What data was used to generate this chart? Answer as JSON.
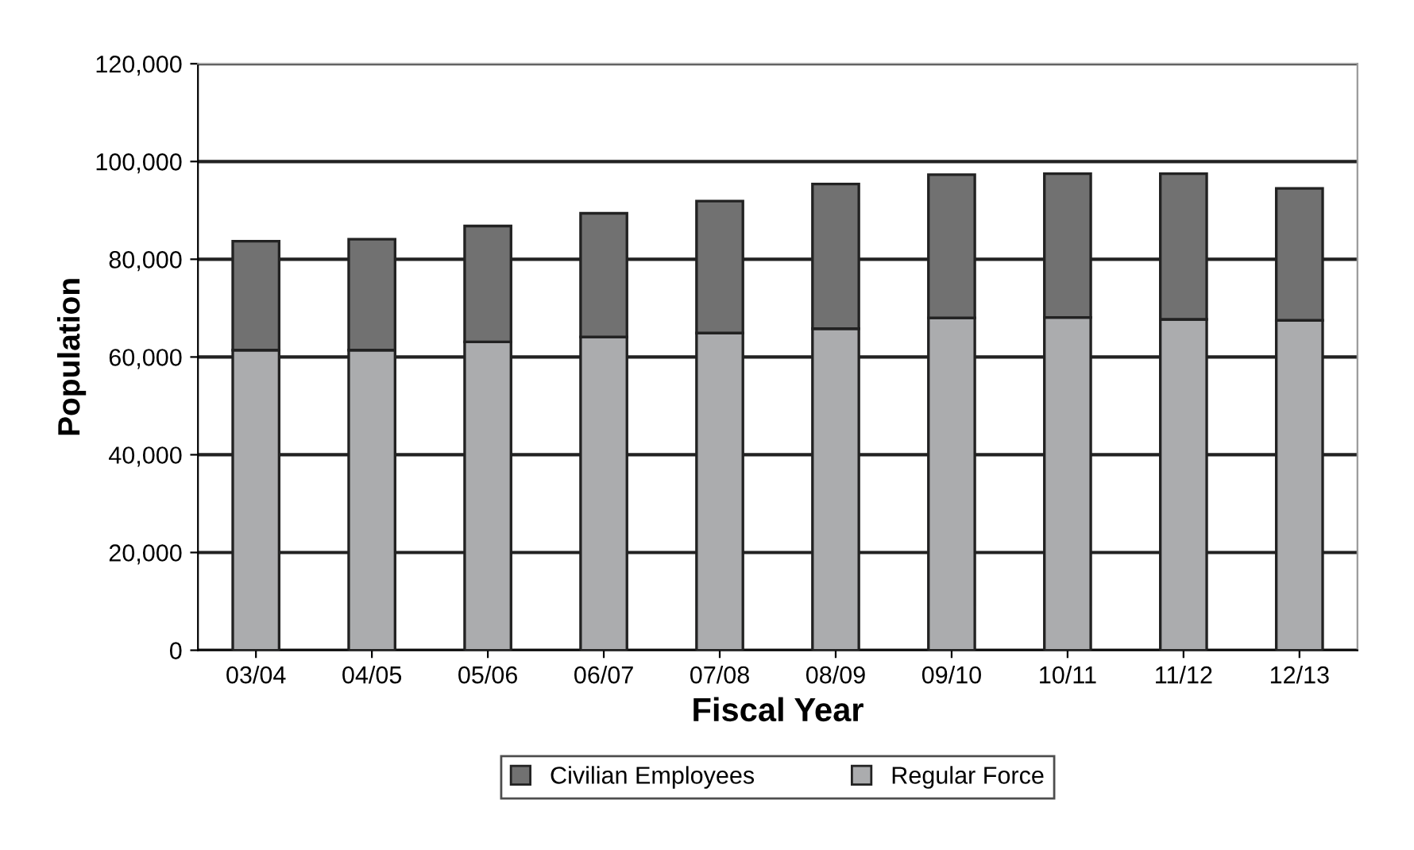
{
  "chart_data": {
    "type": "bar",
    "stacked": true,
    "xlabel": "Fiscal Year",
    "ylabel": "Population",
    "categories": [
      "03/04",
      "04/05",
      "05/06",
      "06/07",
      "07/08",
      "08/09",
      "09/10",
      "10/11",
      "11/12",
      "12/13"
    ],
    "series": [
      {
        "name": "Regular Force",
        "color": "#abacae",
        "values": [
          61400,
          61400,
          63100,
          64100,
          64900,
          65800,
          68000,
          68100,
          67700,
          67500
        ]
      },
      {
        "name": "Civilian Employees",
        "color": "#717171",
        "values": [
          22300,
          22700,
          23700,
          25300,
          27000,
          29600,
          29300,
          29400,
          29800,
          27000
        ]
      }
    ],
    "ylim": [
      0,
      120000
    ],
    "yticks": [
      {
        "value": 0,
        "label": "0"
      },
      {
        "value": 20000,
        "label": "20,000"
      },
      {
        "value": 40000,
        "label": "40,000"
      },
      {
        "value": 60000,
        "label": "60,000"
      },
      {
        "value": 80000,
        "label": "80,000"
      },
      {
        "value": 100000,
        "label": "100,000"
      },
      {
        "value": 120000,
        "label": "120,000"
      }
    ],
    "grid": "y",
    "legend": "bottom"
  }
}
